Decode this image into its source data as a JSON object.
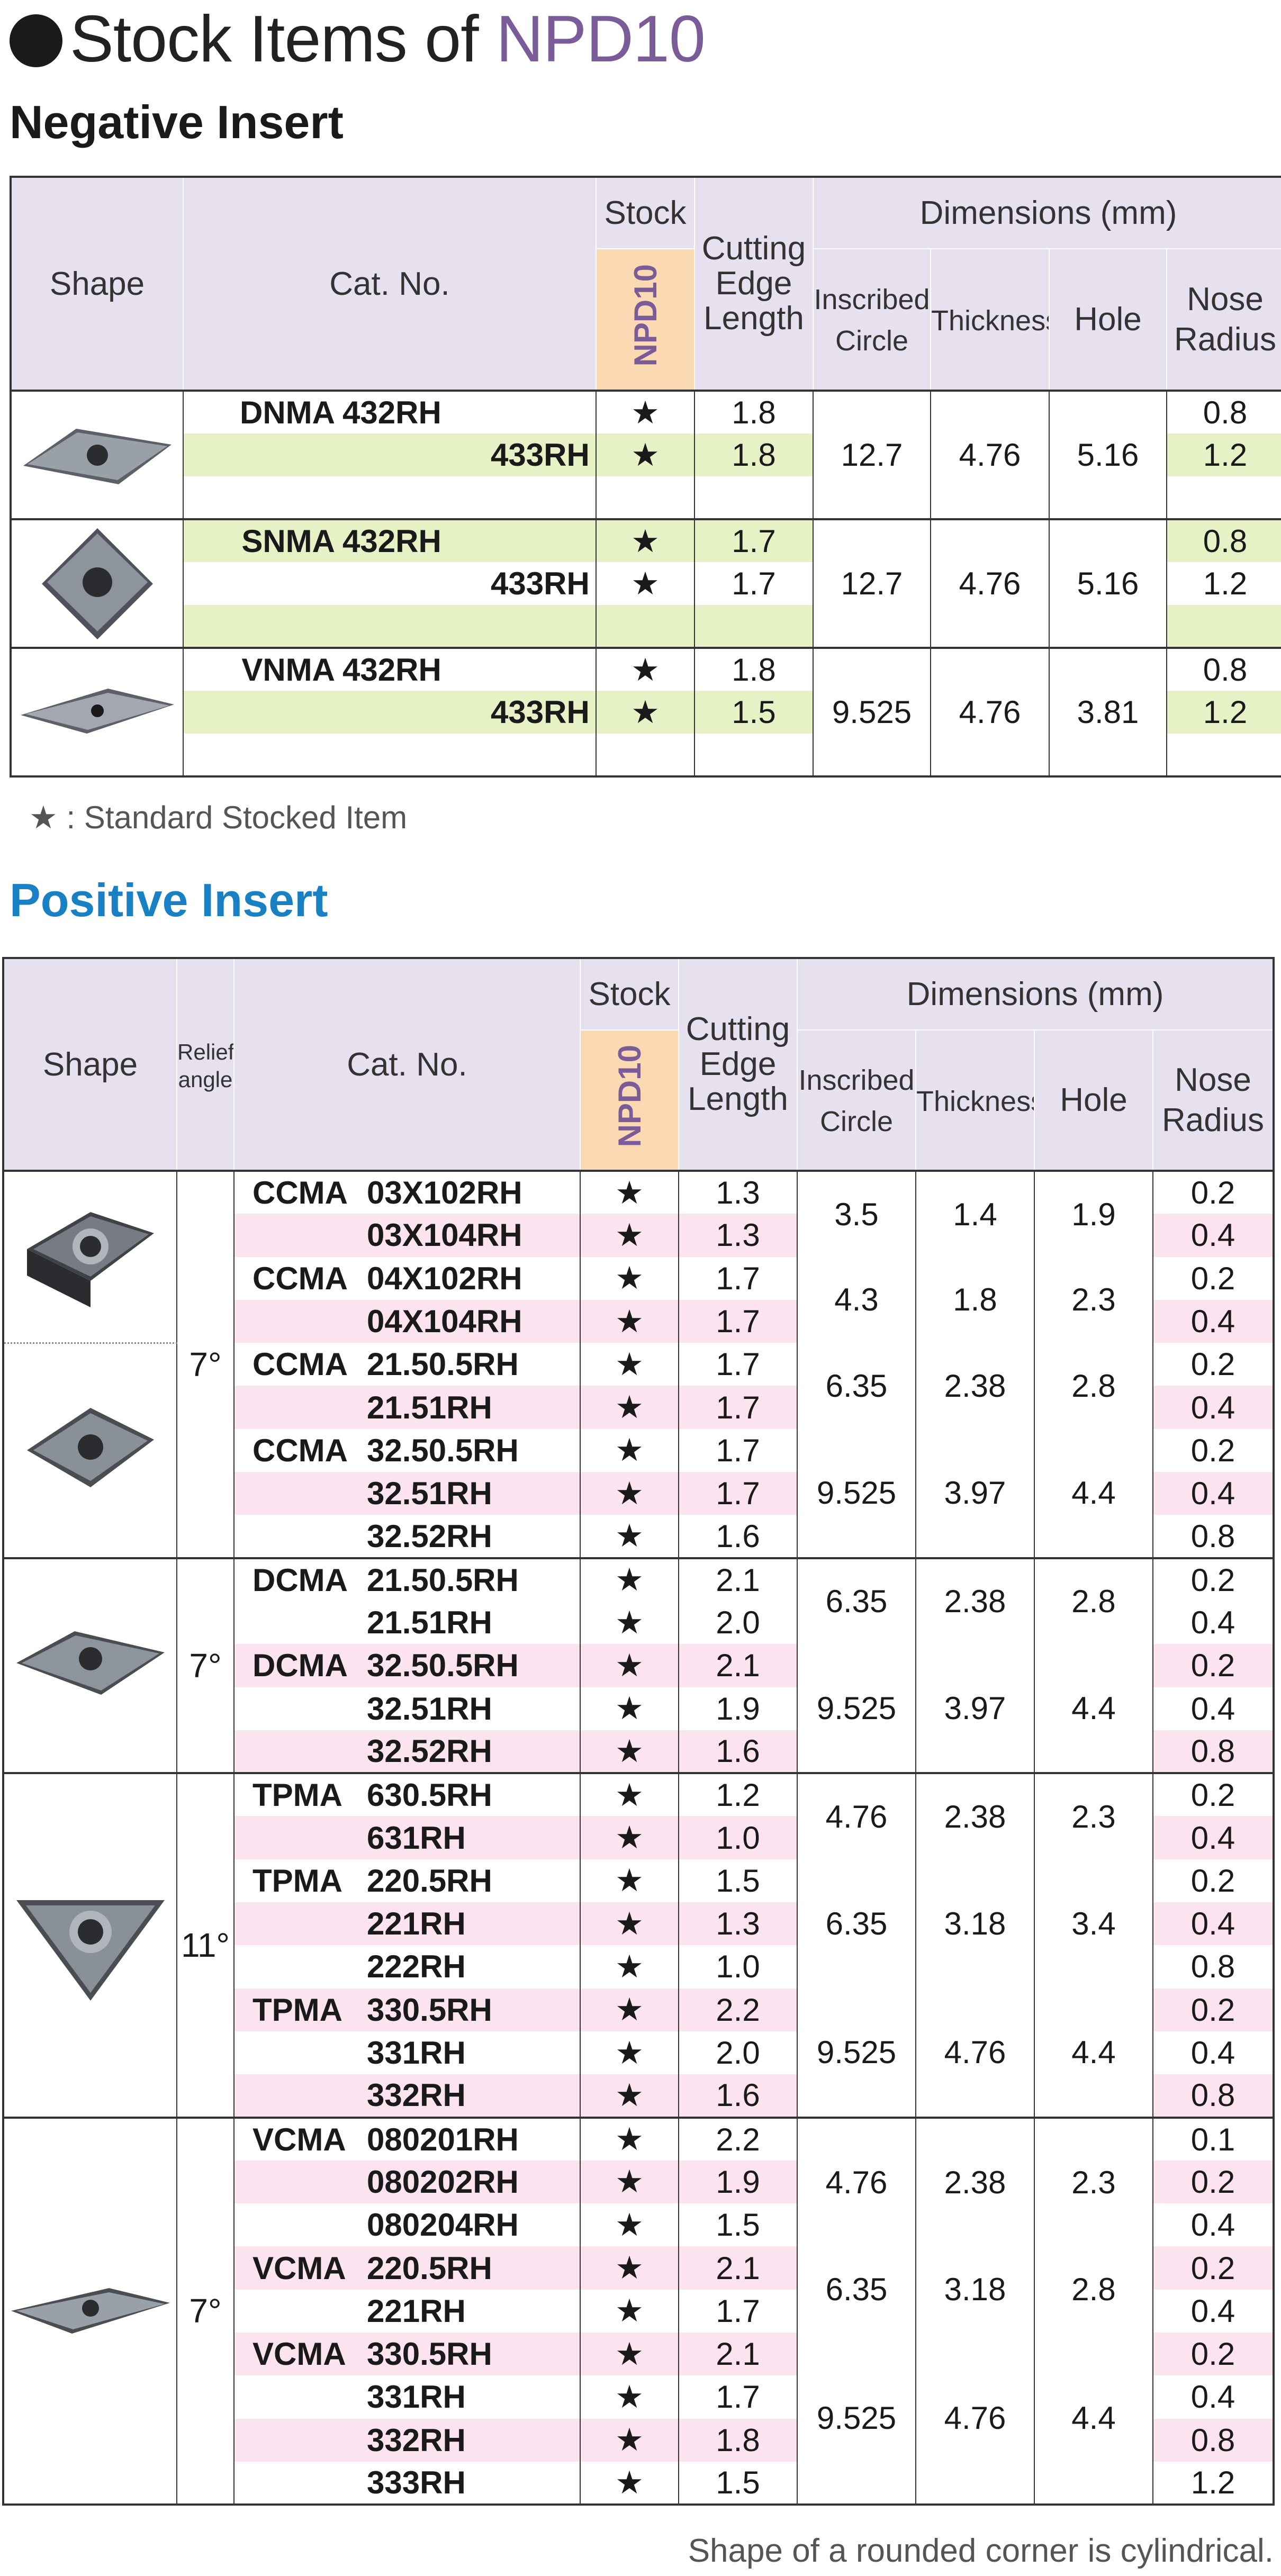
{
  "page": {
    "title_prefix": "Stock Items of",
    "title_highlight": "NPD10",
    "negative_title": "Negative Insert",
    "positive_title": "Positive Insert",
    "legend": "★ : Standard Stocked Item",
    "footer_note": "Shape of a rounded corner is cylindrical."
  },
  "headers": {
    "shape": "Shape",
    "relief": "Relief angle",
    "cat_no": "Cat. No.",
    "stock": "Stock",
    "grade": "NPD10",
    "cutting_edge": [
      "Cutting",
      "Edge",
      "Length"
    ],
    "dimensions": "Dimensions (mm)",
    "inscribed": [
      "Inscribed",
      "Circle"
    ],
    "thickness": "Thickness",
    "hole": "Hole",
    "nose": [
      "Nose",
      "Radius"
    ]
  },
  "colors": {
    "accent": "#7a5c99",
    "positive_title": "#1a80c4",
    "header_bg": "#e7e1ef",
    "stock_header_bg": "#fbd9b3",
    "negative_row_tint": "#e7f1c6",
    "positive_row_tint": "#fbe4ef"
  },
  "negative": {
    "rows": [
      {
        "cat_prefix": "DNMA",
        "cat_suffix": "432RH",
        "stock": "★",
        "cel": "1.8",
        "ic": "12.7",
        "t": "4.76",
        "hole": "5.16",
        "nose": "0.8"
      },
      {
        "cat_prefix": "",
        "cat_suffix": "433RH",
        "stock": "★",
        "cel": "1.8",
        "ic": "",
        "t": "",
        "hole": "",
        "nose": "1.2"
      },
      {
        "cat_prefix": "SNMA",
        "cat_suffix": "432RH",
        "stock": "★",
        "cel": "1.7",
        "ic": "12.7",
        "t": "4.76",
        "hole": "5.16",
        "nose": "0.8"
      },
      {
        "cat_prefix": "",
        "cat_suffix": "433RH",
        "stock": "★",
        "cel": "1.7",
        "ic": "",
        "t": "",
        "hole": "",
        "nose": "1.2"
      },
      {
        "cat_prefix": "VNMA",
        "cat_suffix": "432RH",
        "stock": "★",
        "cel": "1.8",
        "ic": "9.525",
        "t": "4.76",
        "hole": "3.81",
        "nose": "0.8"
      },
      {
        "cat_prefix": "",
        "cat_suffix": "433RH",
        "stock": "★",
        "cel": "1.5",
        "ic": "",
        "t": "",
        "hole": "",
        "nose": "1.2"
      }
    ]
  },
  "positive": {
    "relief_angles": [
      "7°",
      "7°",
      "11°",
      "7°"
    ],
    "rows": [
      {
        "cat_prefix": "CCMA",
        "cat_suffix": "03X102RH",
        "stock": "★",
        "cel": "1.3",
        "ic": "3.5",
        "t": "1.4",
        "hole": "1.9",
        "nose": "0.2"
      },
      {
        "cat_prefix": "",
        "cat_suffix": "03X104RH",
        "stock": "★",
        "cel": "1.3",
        "ic": "",
        "t": "",
        "hole": "",
        "nose": "0.4"
      },
      {
        "cat_prefix": "CCMA",
        "cat_suffix": "04X102RH",
        "stock": "★",
        "cel": "1.7",
        "ic": "4.3",
        "t": "1.8",
        "hole": "2.3",
        "nose": "0.2"
      },
      {
        "cat_prefix": "",
        "cat_suffix": "04X104RH",
        "stock": "★",
        "cel": "1.7",
        "ic": "",
        "t": "",
        "hole": "",
        "nose": "0.4"
      },
      {
        "cat_prefix": "CCMA",
        "cat_suffix": "21.50.5RH",
        "stock": "★",
        "cel": "1.7",
        "ic": "6.35",
        "t": "2.38",
        "hole": "2.8",
        "nose": "0.2"
      },
      {
        "cat_prefix": "",
        "cat_suffix": "21.51RH",
        "stock": "★",
        "cel": "1.7",
        "ic": "",
        "t": "",
        "hole": "",
        "nose": "0.4"
      },
      {
        "cat_prefix": "CCMA",
        "cat_suffix": "32.50.5RH",
        "stock": "★",
        "cel": "1.7",
        "ic": "9.525",
        "t": "3.97",
        "hole": "4.4",
        "nose": "0.2"
      },
      {
        "cat_prefix": "",
        "cat_suffix": "32.51RH",
        "stock": "★",
        "cel": "1.7",
        "ic": "",
        "t": "",
        "hole": "",
        "nose": "0.4"
      },
      {
        "cat_prefix": "",
        "cat_suffix": "32.52RH",
        "stock": "★",
        "cel": "1.6",
        "ic": "",
        "t": "",
        "hole": "",
        "nose": "0.8"
      },
      {
        "cat_prefix": "DCMA",
        "cat_suffix": "21.50.5RH",
        "stock": "★",
        "cel": "2.1",
        "ic": "6.35",
        "t": "2.38",
        "hole": "2.8",
        "nose": "0.2"
      },
      {
        "cat_prefix": "",
        "cat_suffix": "21.51RH",
        "stock": "★",
        "cel": "2.0",
        "ic": "",
        "t": "",
        "hole": "",
        "nose": "0.4"
      },
      {
        "cat_prefix": "DCMA",
        "cat_suffix": "32.50.5RH",
        "stock": "★",
        "cel": "2.1",
        "ic": "9.525",
        "t": "3.97",
        "hole": "4.4",
        "nose": "0.2"
      },
      {
        "cat_prefix": "",
        "cat_suffix": "32.51RH",
        "stock": "★",
        "cel": "1.9",
        "ic": "",
        "t": "",
        "hole": "",
        "nose": "0.4"
      },
      {
        "cat_prefix": "",
        "cat_suffix": "32.52RH",
        "stock": "★",
        "cel": "1.6",
        "ic": "",
        "t": "",
        "hole": "",
        "nose": "0.8"
      },
      {
        "cat_prefix": "TPMA",
        "cat_suffix": "630.5RH",
        "stock": "★",
        "cel": "1.2",
        "ic": "4.76",
        "t": "2.38",
        "hole": "2.3",
        "nose": "0.2"
      },
      {
        "cat_prefix": "",
        "cat_suffix": "631RH",
        "stock": "★",
        "cel": "1.0",
        "ic": "",
        "t": "",
        "hole": "",
        "nose": "0.4"
      },
      {
        "cat_prefix": "TPMA",
        "cat_suffix": "220.5RH",
        "stock": "★",
        "cel": "1.5",
        "ic": "6.35",
        "t": "3.18",
        "hole": "3.4",
        "nose": "0.2"
      },
      {
        "cat_prefix": "",
        "cat_suffix": "221RH",
        "stock": "★",
        "cel": "1.3",
        "ic": "",
        "t": "",
        "hole": "",
        "nose": "0.4"
      },
      {
        "cat_prefix": "",
        "cat_suffix": "222RH",
        "stock": "★",
        "cel": "1.0",
        "ic": "",
        "t": "",
        "hole": "",
        "nose": "0.8"
      },
      {
        "cat_prefix": "TPMA",
        "cat_suffix": "330.5RH",
        "stock": "★",
        "cel": "2.2",
        "ic": "9.525",
        "t": "4.76",
        "hole": "4.4",
        "nose": "0.2"
      },
      {
        "cat_prefix": "",
        "cat_suffix": "331RH",
        "stock": "★",
        "cel": "2.0",
        "ic": "",
        "t": "",
        "hole": "",
        "nose": "0.4"
      },
      {
        "cat_prefix": "",
        "cat_suffix": "332RH",
        "stock": "★",
        "cel": "1.6",
        "ic": "",
        "t": "",
        "hole": "",
        "nose": "0.8"
      },
      {
        "cat_prefix": "VCMA",
        "cat_suffix": "080201RH",
        "stock": "★",
        "cel": "2.2",
        "ic": "4.76",
        "t": "2.38",
        "hole": "2.3",
        "nose": "0.1"
      },
      {
        "cat_prefix": "",
        "cat_suffix": "080202RH",
        "stock": "★",
        "cel": "1.9",
        "ic": "",
        "t": "",
        "hole": "",
        "nose": "0.2"
      },
      {
        "cat_prefix": "",
        "cat_suffix": "080204RH",
        "stock": "★",
        "cel": "1.5",
        "ic": "",
        "t": "",
        "hole": "",
        "nose": "0.4"
      },
      {
        "cat_prefix": "VCMA",
        "cat_suffix": "220.5RH",
        "stock": "★",
        "cel": "2.1",
        "ic": "6.35",
        "t": "3.18",
        "hole": "2.8",
        "nose": "0.2"
      },
      {
        "cat_prefix": "",
        "cat_suffix": "221RH",
        "stock": "★",
        "cel": "1.7",
        "ic": "",
        "t": "",
        "hole": "",
        "nose": "0.4"
      },
      {
        "cat_prefix": "VCMA",
        "cat_suffix": "330.5RH",
        "stock": "★",
        "cel": "2.1",
        "ic": "9.525",
        "t": "4.76",
        "hole": "4.4",
        "nose": "0.2"
      },
      {
        "cat_prefix": "",
        "cat_suffix": "331RH",
        "stock": "★",
        "cel": "1.7",
        "ic": "",
        "t": "",
        "hole": "",
        "nose": "0.4"
      },
      {
        "cat_prefix": "",
        "cat_suffix": "332RH",
        "stock": "★",
        "cel": "1.8",
        "ic": "",
        "t": "",
        "hole": "",
        "nose": "0.8"
      },
      {
        "cat_prefix": "",
        "cat_suffix": "333RH",
        "stock": "★",
        "cel": "1.5",
        "ic": "",
        "t": "",
        "hole": "",
        "nose": "1.2"
      }
    ]
  }
}
